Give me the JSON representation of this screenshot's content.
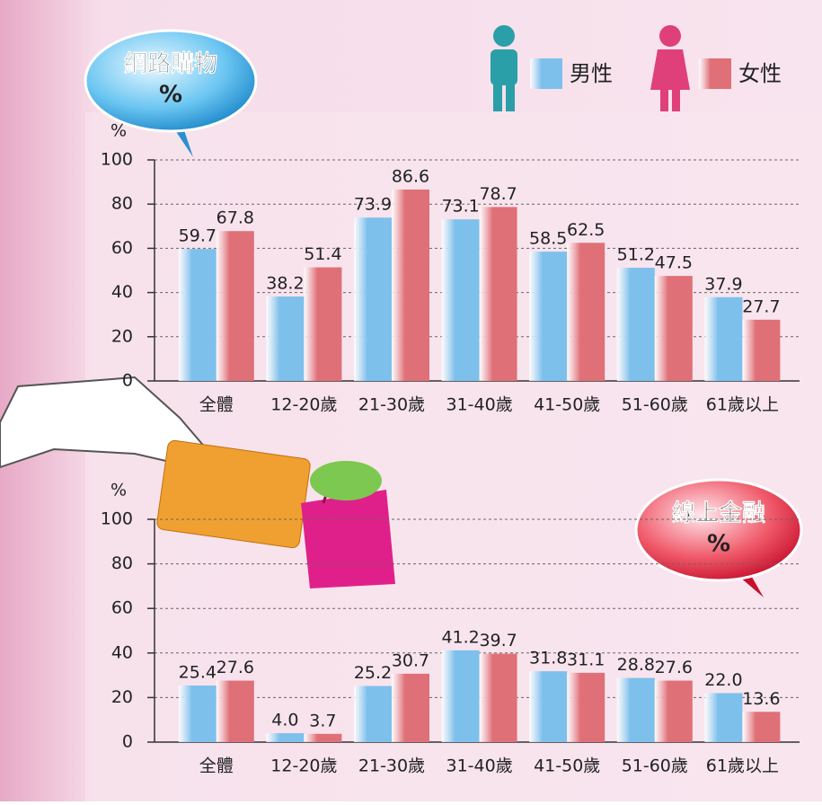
{
  "chart_data": [
    {
      "type": "bar",
      "title": "網路購物",
      "subtitle": "%",
      "ylabel": "%",
      "categories": [
        "全體",
        "12-20歲",
        "21-30歲",
        "31-40歲",
        "41-50歲",
        "51-60歲",
        "61歲以上"
      ],
      "series": [
        {
          "name": "男性",
          "color": "#7ec0ec",
          "values": [
            59.7,
            38.2,
            73.9,
            73.1,
            58.5,
            51.2,
            37.9
          ]
        },
        {
          "name": "女性",
          "color": "#e07078",
          "values": [
            67.8,
            51.4,
            86.6,
            78.7,
            62.5,
            47.5,
            27.7
          ]
        }
      ],
      "ylim": [
        0,
        100
      ],
      "yticks": [
        0,
        20,
        40,
        60,
        80,
        100
      ],
      "grid": true
    },
    {
      "type": "bar",
      "title": "線上金融",
      "subtitle": "%",
      "ylabel": "%",
      "categories": [
        "全體",
        "12-20歲",
        "21-30歲",
        "31-40歲",
        "41-50歲",
        "51-60歲",
        "61歲以上"
      ],
      "series": [
        {
          "color": "#7ec0ec",
          "values": [
            25.4,
            4.0,
            25.2,
            41.2,
            31.8,
            28.8,
            22.0
          ],
          "value_labels": [
            "25.4",
            "4.0",
            "25.2",
            "41.2",
            "31.8",
            "28.8",
            "22.0"
          ]
        },
        {
          "color": "#e07078",
          "values": [
            27.6,
            3.7,
            30.7,
            39.7,
            31.1,
            27.6,
            13.6
          ]
        }
      ],
      "ylim": [
        0,
        100
      ],
      "yticks": [
        0,
        20,
        40,
        60,
        80,
        100
      ],
      "grid": true
    }
  ]
}
